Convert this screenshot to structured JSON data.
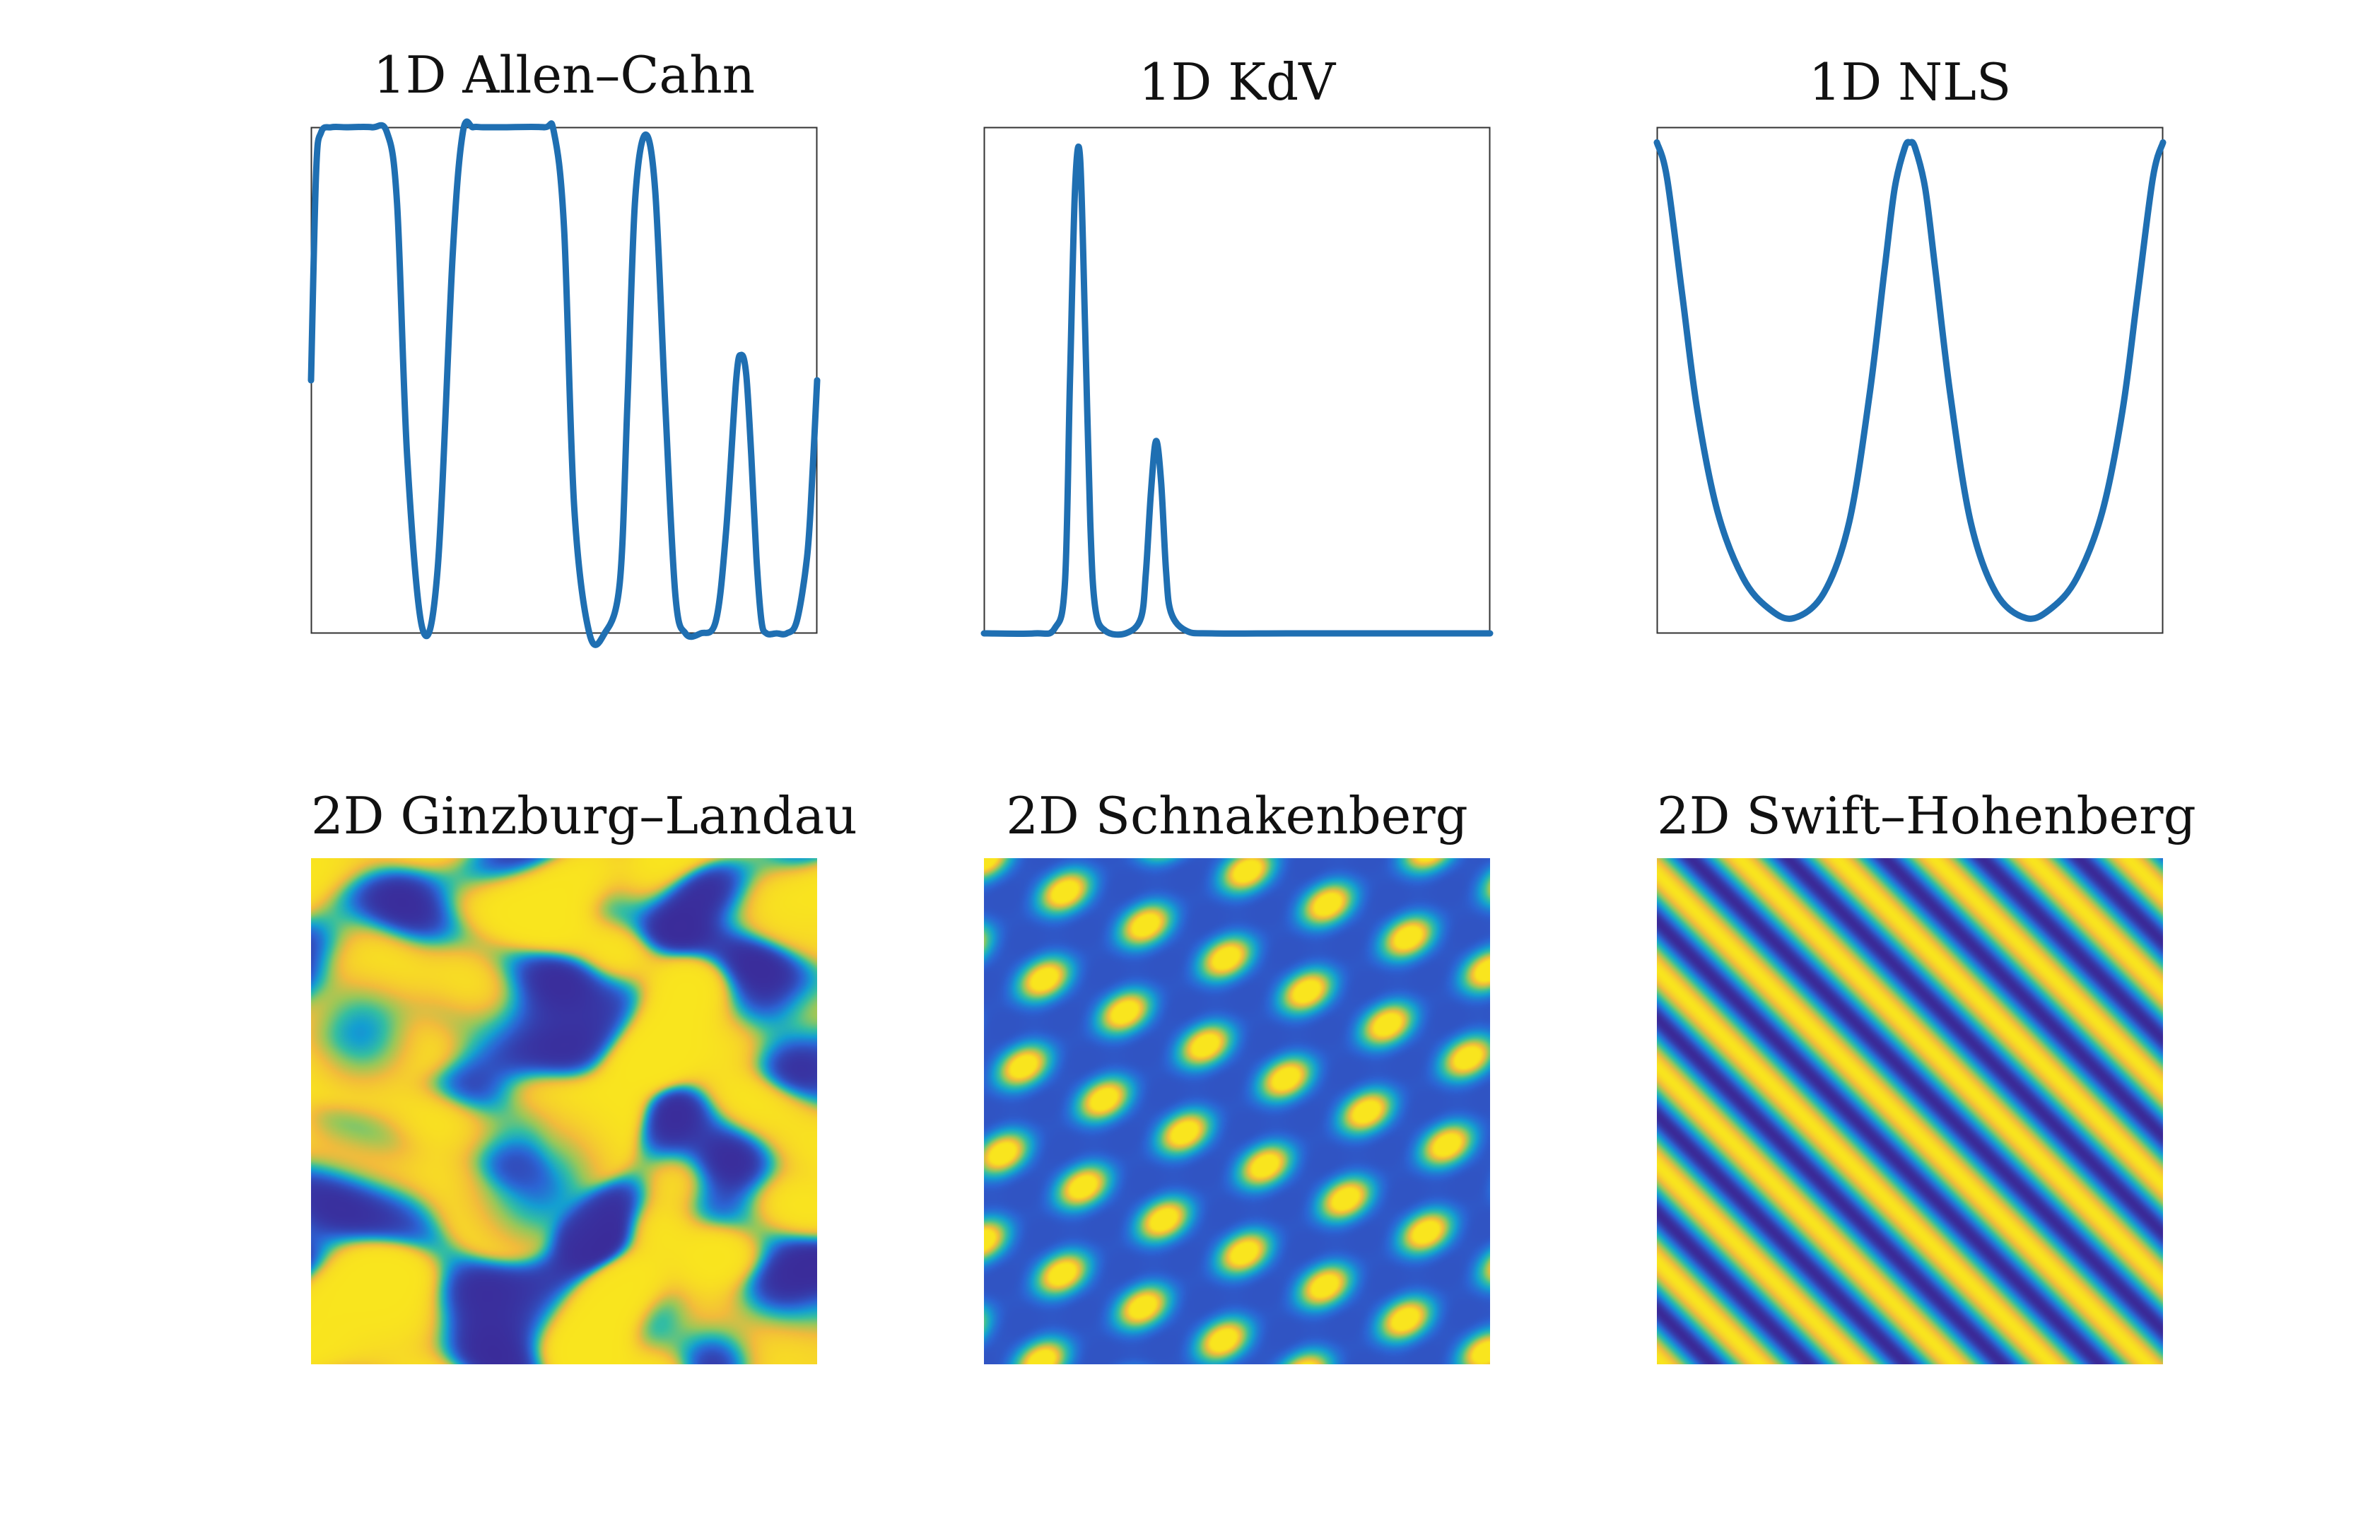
{
  "figure": {
    "line_color": "#1f6fb2",
    "colormap": [
      "#3b2a98",
      "#2c64d4",
      "#149fd2",
      "#36bfa0",
      "#98c85a",
      "#f2bb3c",
      "#f9e51e"
    ]
  },
  "chart_data": [
    {
      "type": "line",
      "title": "1D Allen–Cahn",
      "xlim": [
        0,
        1
      ],
      "ylim": [
        -1,
        1
      ],
      "axis_ticks": false,
      "series": [
        {
          "x": [
            0.0,
            0.01,
            0.02,
            0.04,
            0.07,
            0.12,
            0.15,
            0.17,
            0.19,
            0.22,
            0.25,
            0.28,
            0.3,
            0.32,
            0.34,
            0.38,
            0.46,
            0.48,
            0.5,
            0.52,
            0.55,
            0.58,
            0.61,
            0.625,
            0.64,
            0.66,
            0.68,
            0.7,
            0.72,
            0.74,
            0.77,
            0.8,
            0.82,
            0.84,
            0.85,
            0.86,
            0.87,
            0.88,
            0.89,
            0.9,
            0.92,
            0.94,
            0.96,
            0.98,
            0.99,
            1.0
          ],
          "y": [
            0.0,
            0.82,
            0.98,
            1.0,
            1.0,
            1.0,
            0.98,
            0.7,
            -0.3,
            -0.98,
            -0.75,
            0.5,
            0.98,
            1.0,
            1.0,
            1.0,
            1.0,
            0.98,
            0.6,
            -0.5,
            -1.0,
            -1.0,
            -0.8,
            -0.1,
            0.7,
            0.97,
            0.75,
            -0.1,
            -0.85,
            -1.0,
            -1.0,
            -0.95,
            -0.6,
            0.0,
            0.1,
            0.02,
            -0.3,
            -0.7,
            -0.95,
            -1.0,
            -1.0,
            -1.0,
            -0.95,
            -0.7,
            -0.4,
            0.0
          ]
        }
      ]
    },
    {
      "type": "line",
      "title": "1D KdV",
      "xlim": [
        0,
        1
      ],
      "ylim": [
        0,
        1
      ],
      "axis_ticks": false,
      "series": [
        {
          "x": [
            0.0,
            0.1,
            0.14,
            0.16,
            0.17,
            0.18,
            0.19,
            0.2,
            0.21,
            0.22,
            0.24,
            0.28,
            0.31,
            0.32,
            0.33,
            0.34,
            0.35,
            0.36,
            0.37,
            0.4,
            0.45,
            0.6,
            0.8,
            1.0
          ],
          "y": [
            0.0,
            0.0,
            0.01,
            0.1,
            0.5,
            0.88,
            0.94,
            0.6,
            0.22,
            0.05,
            0.005,
            0.0,
            0.03,
            0.12,
            0.28,
            0.38,
            0.3,
            0.12,
            0.04,
            0.005,
            0.0,
            0.0,
            0.0,
            0.0
          ]
        }
      ]
    },
    {
      "type": "line",
      "title": "1D NLS",
      "xlim": [
        0,
        1
      ],
      "ylim": [
        0,
        1
      ],
      "axis_ticks": false,
      "series": [
        {
          "x": [
            0.0,
            0.02,
            0.05,
            0.08,
            0.12,
            0.17,
            0.22,
            0.27,
            0.33,
            0.38,
            0.42,
            0.45,
            0.47,
            0.49,
            0.5,
            0.51,
            0.53,
            0.55,
            0.58,
            0.62,
            0.67,
            0.73,
            0.78,
            0.83,
            0.88,
            0.92,
            0.95,
            0.98,
            1.0
          ],
          "y": [
            0.97,
            0.9,
            0.67,
            0.44,
            0.24,
            0.11,
            0.05,
            0.03,
            0.08,
            0.22,
            0.47,
            0.72,
            0.88,
            0.96,
            0.97,
            0.96,
            0.88,
            0.72,
            0.47,
            0.22,
            0.08,
            0.03,
            0.05,
            0.11,
            0.24,
            0.44,
            0.67,
            0.9,
            0.97
          ]
        }
      ]
    },
    {
      "type": "heatmap",
      "title": "2D Ginzburg–Landau",
      "axis_ticks": false,
      "pattern": "spiral defects"
    },
    {
      "type": "heatmap",
      "title": "2D Schnakenberg",
      "axis_ticks": false,
      "pattern": "spot lattice"
    },
    {
      "type": "heatmap",
      "title": "2D Swift–Hohenberg",
      "axis_ticks": false,
      "pattern": "diagonal stripes"
    }
  ]
}
